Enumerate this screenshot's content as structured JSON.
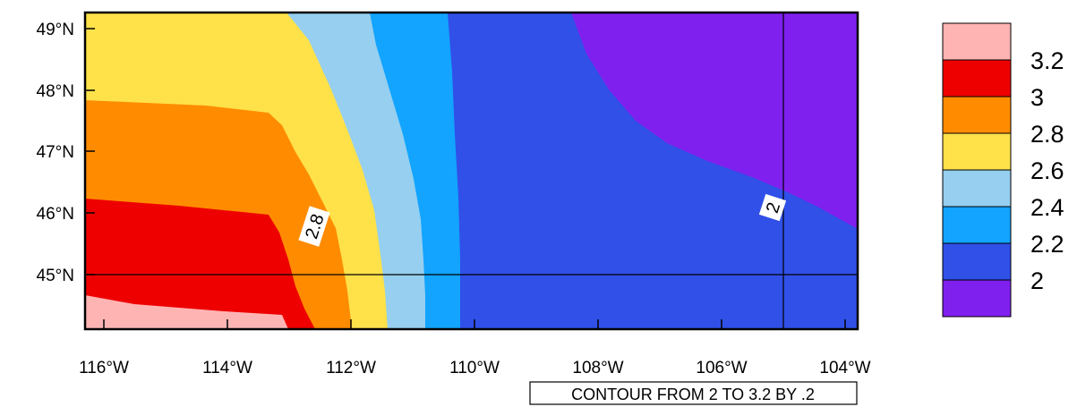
{
  "map": {
    "lat_ticks": [
      "49°N",
      "48°N",
      "47°N",
      "46°N",
      "45°N"
    ],
    "lon_ticks": [
      "116°W",
      "114°W",
      "112°W",
      "110°W",
      "108°W",
      "106°W",
      "104°W"
    ],
    "contour_info": "CONTOUR FROM 2 TO 3.2 BY .2",
    "contour_labels": [
      "2.8",
      "2"
    ],
    "extent": {
      "lon": [
        -116.3,
        -103.8
      ],
      "lat": [
        44.1,
        49.25
      ]
    },
    "reference_lines": {
      "lat": 45,
      "lon": -105
    }
  },
  "legend": {
    "labels": [
      "3.2",
      "3",
      "2.8",
      "2.6",
      "2.4",
      "2.2",
      "2"
    ],
    "colors": [
      "#FFB4B4",
      "#EE0000",
      "#FF8C00",
      "#FFE14A",
      "#96CFEF",
      "#12A4FF",
      "#3050E8",
      "#8020EE"
    ]
  },
  "chart_data": {
    "type": "heatmap",
    "levels": [
      2,
      2.2,
      2.4,
      2.6,
      2.8,
      3,
      3.2
    ],
    "x_range": [
      -116.3,
      -103.8
    ],
    "y_range": [
      44.1,
      49.25
    ],
    "color_bands": [
      {
        "range": "< 2",
        "color": "#8020EE"
      },
      {
        "range": "2–2.2",
        "color": "#3050E8"
      },
      {
        "range": "2.2–2.4",
        "color": "#12A4FF"
      },
      {
        "range": "2.4–2.6",
        "color": "#96CFEF"
      },
      {
        "range": "2.6–2.8",
        "color": "#FFE14A"
      },
      {
        "range": "2.8–3",
        "color": "#FF8C00"
      },
      {
        "range": "3–3.2",
        "color": "#EE0000"
      },
      {
        "range": "> 3.2",
        "color": "#FFB4B4"
      }
    ]
  }
}
